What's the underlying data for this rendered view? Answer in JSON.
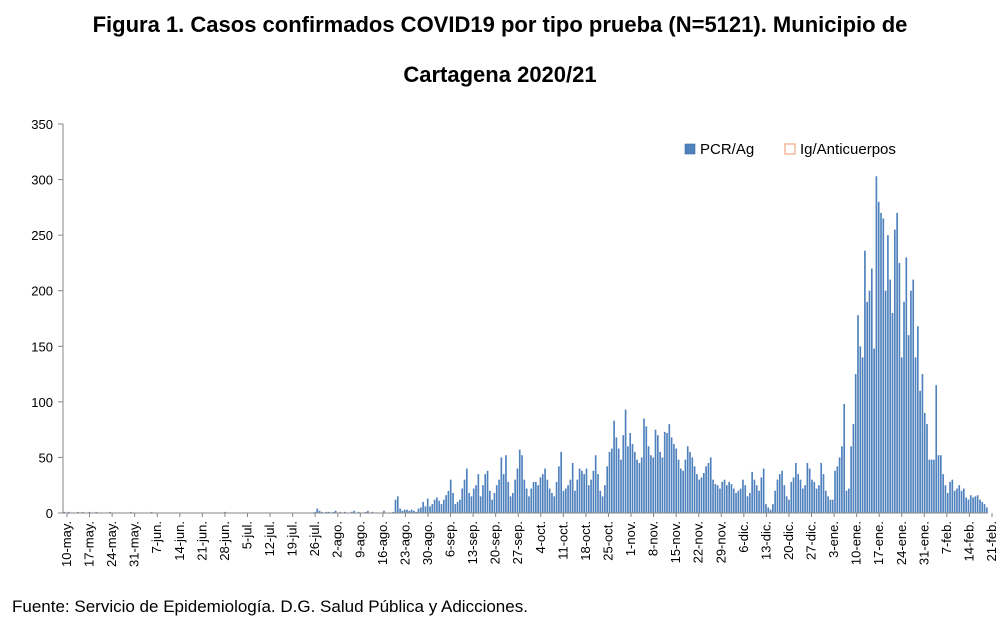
{
  "chart_data": {
    "type": "bar",
    "title_line1": "Figura 1. Casos confirmados COVID19 por tipo prueba (N=5121). Municipio de",
    "title_line2": "Cartagena 2020/21",
    "xlabel": "",
    "ylabel": "",
    "ylim": [
      0,
      350
    ],
    "yticks": [
      0,
      50,
      100,
      150,
      200,
      250,
      300,
      350
    ],
    "grid": false,
    "legend_position": "top-right",
    "xtick_labels": [
      "10-may.",
      "17-may.",
      "24-may.",
      "31-may.",
      "7-jun.",
      "14-jun.",
      "21-jun.",
      "28-jun.",
      "5-jul.",
      "12-jul.",
      "19-jul.",
      "26-jul.",
      "2-ago.",
      "9-ago.",
      "16-ago.",
      "23-ago.",
      "30-ago.",
      "6-sep.",
      "13-sep.",
      "20-sep.",
      "27-sep.",
      "4-oct.",
      "11-oct.",
      "18-oct.",
      "25-oct.",
      "1-nov.",
      "8-nov.",
      "15-nov.",
      "22-nov.",
      "29-nov.",
      "6-dic.",
      "13-dic.",
      "20-dic.",
      "27-dic.",
      "3-ene.",
      "10-ene.",
      "17-ene.",
      "24-ene.",
      "31-ene.",
      "7-feb.",
      "14-feb.",
      "21-feb."
    ],
    "series": [
      {
        "name": "PCR/Ag",
        "color": "#4f81bd",
        "values": [
          1,
          0,
          1,
          0,
          0,
          0,
          1,
          0,
          1,
          0,
          0,
          1,
          0,
          0,
          1,
          0,
          0,
          0,
          0,
          0,
          1,
          0,
          0,
          0,
          0,
          0,
          0,
          0,
          0,
          1,
          0,
          0,
          0,
          0,
          0,
          0,
          0,
          0,
          1,
          0,
          0,
          0,
          0,
          0,
          0,
          0,
          0,
          0,
          0,
          0,
          0,
          0,
          0,
          0,
          0,
          0,
          0,
          0,
          0,
          0,
          0,
          0,
          0,
          0,
          0,
          0,
          0,
          0,
          0,
          0,
          1,
          0,
          0,
          0,
          0,
          0,
          0,
          0,
          0,
          0,
          0,
          0,
          0,
          0,
          0,
          0,
          0,
          0,
          0,
          0,
          0,
          0,
          0,
          0,
          0,
          0,
          0,
          0,
          0,
          0,
          0,
          0,
          0,
          0,
          0,
          0,
          0,
          0,
          0,
          1,
          4,
          2,
          1,
          0,
          1,
          1,
          0,
          1,
          2,
          0,
          1,
          0,
          1,
          0,
          0,
          1,
          2,
          0,
          1,
          0,
          0,
          1,
          2,
          0,
          1,
          0,
          0,
          0,
          0,
          2,
          0,
          0,
          0,
          1,
          12,
          15,
          4,
          2,
          3,
          3,
          2,
          3,
          2,
          1,
          4,
          5,
          10,
          6,
          13,
          6,
          8,
          12,
          14,
          11,
          8,
          12,
          16,
          20,
          30,
          18,
          8,
          10,
          12,
          22,
          30,
          40,
          18,
          15,
          22,
          25,
          35,
          15,
          25,
          35,
          38,
          20,
          12,
          18,
          25,
          30,
          50,
          35,
          52,
          28,
          15,
          18,
          30,
          40,
          57,
          52,
          30,
          22,
          15,
          22,
          28,
          28,
          25,
          32,
          35,
          40,
          30,
          22,
          18,
          15,
          28,
          42,
          55,
          20,
          22,
          25,
          30,
          45,
          20,
          30,
          40,
          38,
          35,
          40,
          25,
          30,
          38,
          52,
          35,
          20,
          15,
          25,
          42,
          55,
          58,
          83,
          68,
          58,
          48,
          70,
          93,
          60,
          72,
          62,
          55,
          48,
          45,
          50,
          85,
          78,
          60,
          52,
          50,
          75,
          70,
          55,
          50,
          73,
          72,
          80,
          68,
          62,
          58,
          48,
          40,
          38,
          48,
          60,
          55,
          50,
          42,
          35,
          30,
          32,
          36,
          42,
          45,
          50,
          30,
          26,
          25,
          22,
          28,
          30,
          25,
          28,
          26,
          22,
          18,
          20,
          22,
          30,
          25,
          15,
          18,
          37,
          30,
          25,
          20,
          32,
          40,
          8,
          5,
          3,
          8,
          20,
          30,
          35,
          38,
          25,
          15,
          12,
          28,
          32,
          45,
          35,
          30,
          22,
          25,
          45,
          40,
          30,
          28,
          22,
          25,
          45,
          35,
          20,
          15,
          12,
          12,
          38,
          42,
          50,
          60,
          98,
          20,
          22,
          60,
          80,
          125,
          178,
          150,
          140,
          236,
          190,
          200,
          220,
          148,
          303,
          280,
          270,
          265,
          200,
          250,
          210,
          180,
          255,
          270,
          225,
          140,
          190,
          230,
          160,
          200,
          210,
          140,
          168,
          110,
          125,
          90,
          80,
          48,
          48,
          48,
          115,
          52,
          52,
          35,
          25,
          18,
          28,
          30,
          20,
          22,
          25,
          20,
          22,
          14,
          12,
          16,
          14,
          15,
          16,
          12,
          10,
          8,
          5
        ]
      },
      {
        "name": "Ig/Anticuerpos",
        "color": "#f4a582",
        "values": []
      }
    ]
  },
  "source": "Fuente: Servicio de Epidemiología. D.G. Salud Pública y Adicciones."
}
